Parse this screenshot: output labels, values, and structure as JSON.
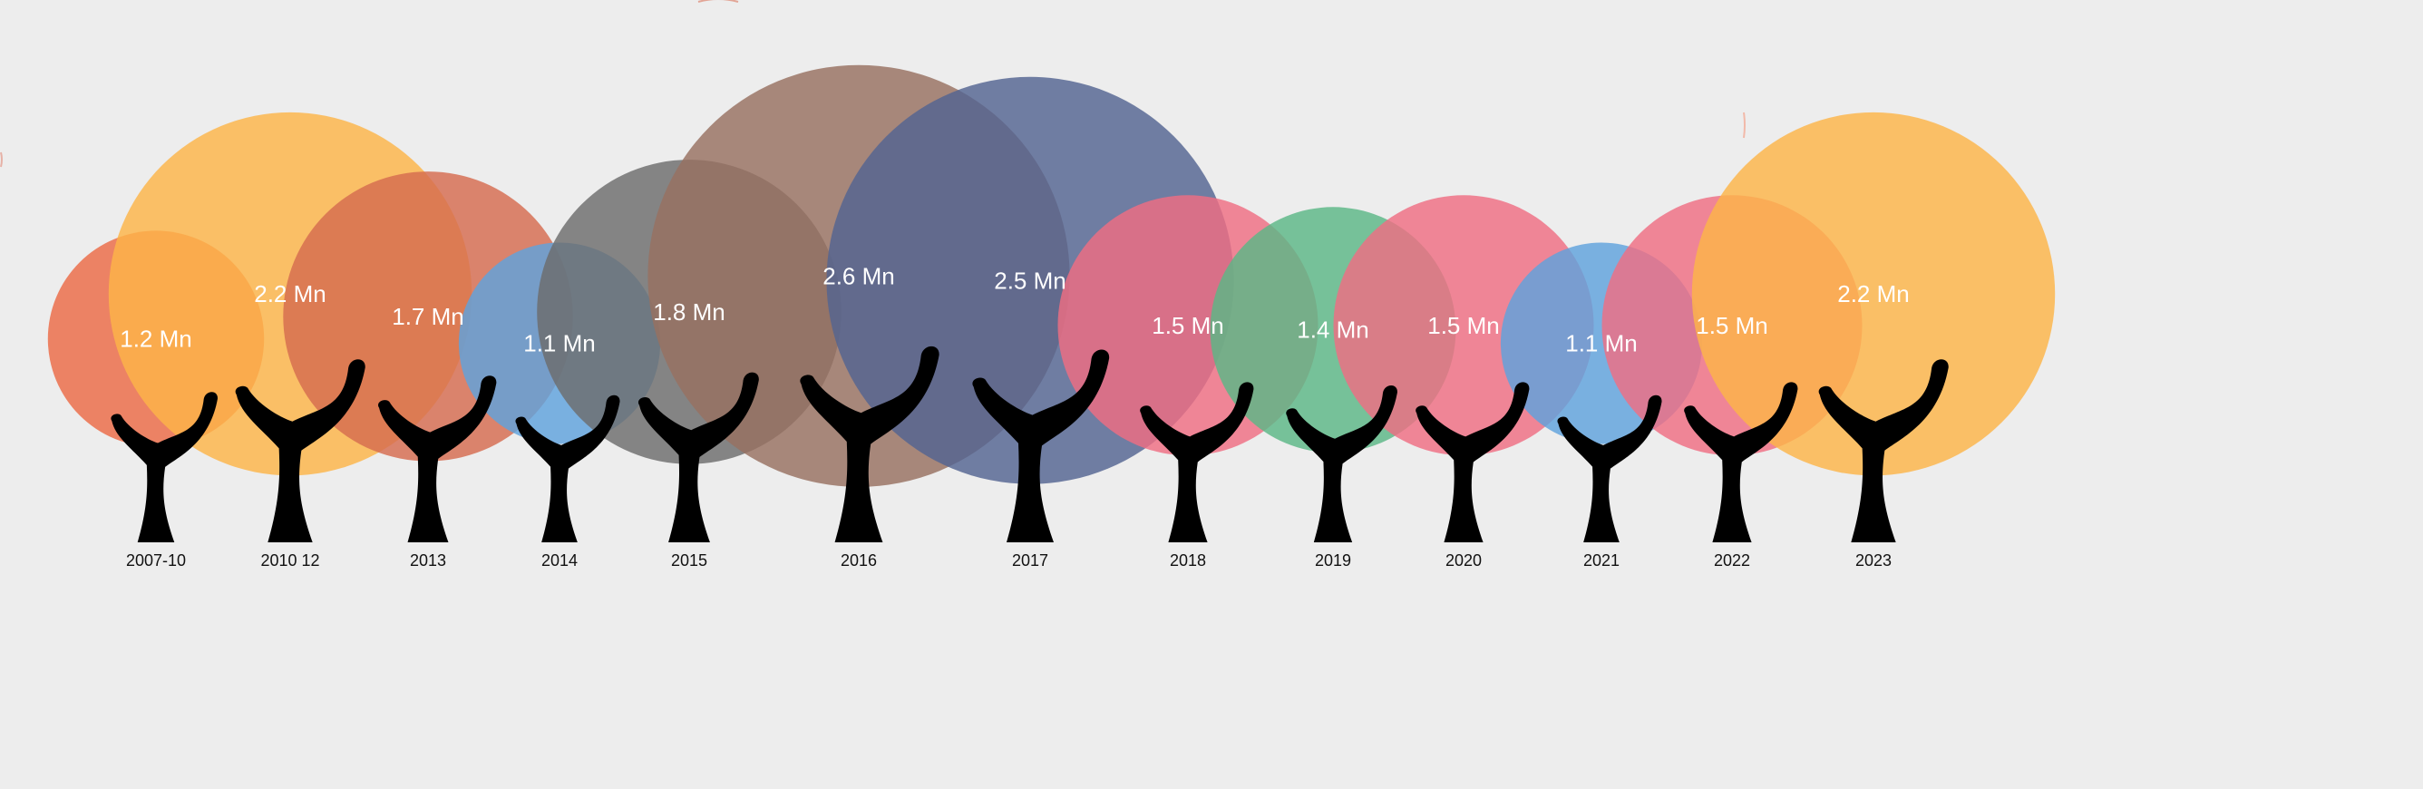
{
  "chart_data": {
    "type": "bubble",
    "unit": "Mn",
    "categories": [
      "2007-10",
      "2010 12",
      "2013",
      "2014",
      "2015",
      "2016",
      "2017",
      "2018",
      "2019",
      "2020",
      "2021",
      "2022",
      "2023"
    ],
    "values": [
      1.2,
      2.2,
      1.7,
      1.1,
      1.8,
      2.6,
      2.5,
      1.5,
      1.4,
      1.5,
      1.1,
      1.5,
      2.2
    ],
    "labels": [
      "1.2 Mn",
      "2.2 Mn",
      "1.7 Mn",
      "1.1 Mn",
      "1.8 Mn",
      "2.6 Mn",
      "2.5 Mn",
      "1.5 Mn",
      "1.4 Mn",
      "1.5 Mn",
      "1.1 Mn",
      "1.5 Mn",
      "2.2 Mn"
    ],
    "colors": [
      "#ec6a45",
      "#fdb448",
      "#d56b4f",
      "#5fa2dd",
      "#6c6c6c",
      "#977060",
      "#536491",
      "#ef6e82",
      "#5bb786",
      "#ef6e82",
      "#5fa2dd",
      "#ef6e82",
      "#fdb448"
    ]
  }
}
